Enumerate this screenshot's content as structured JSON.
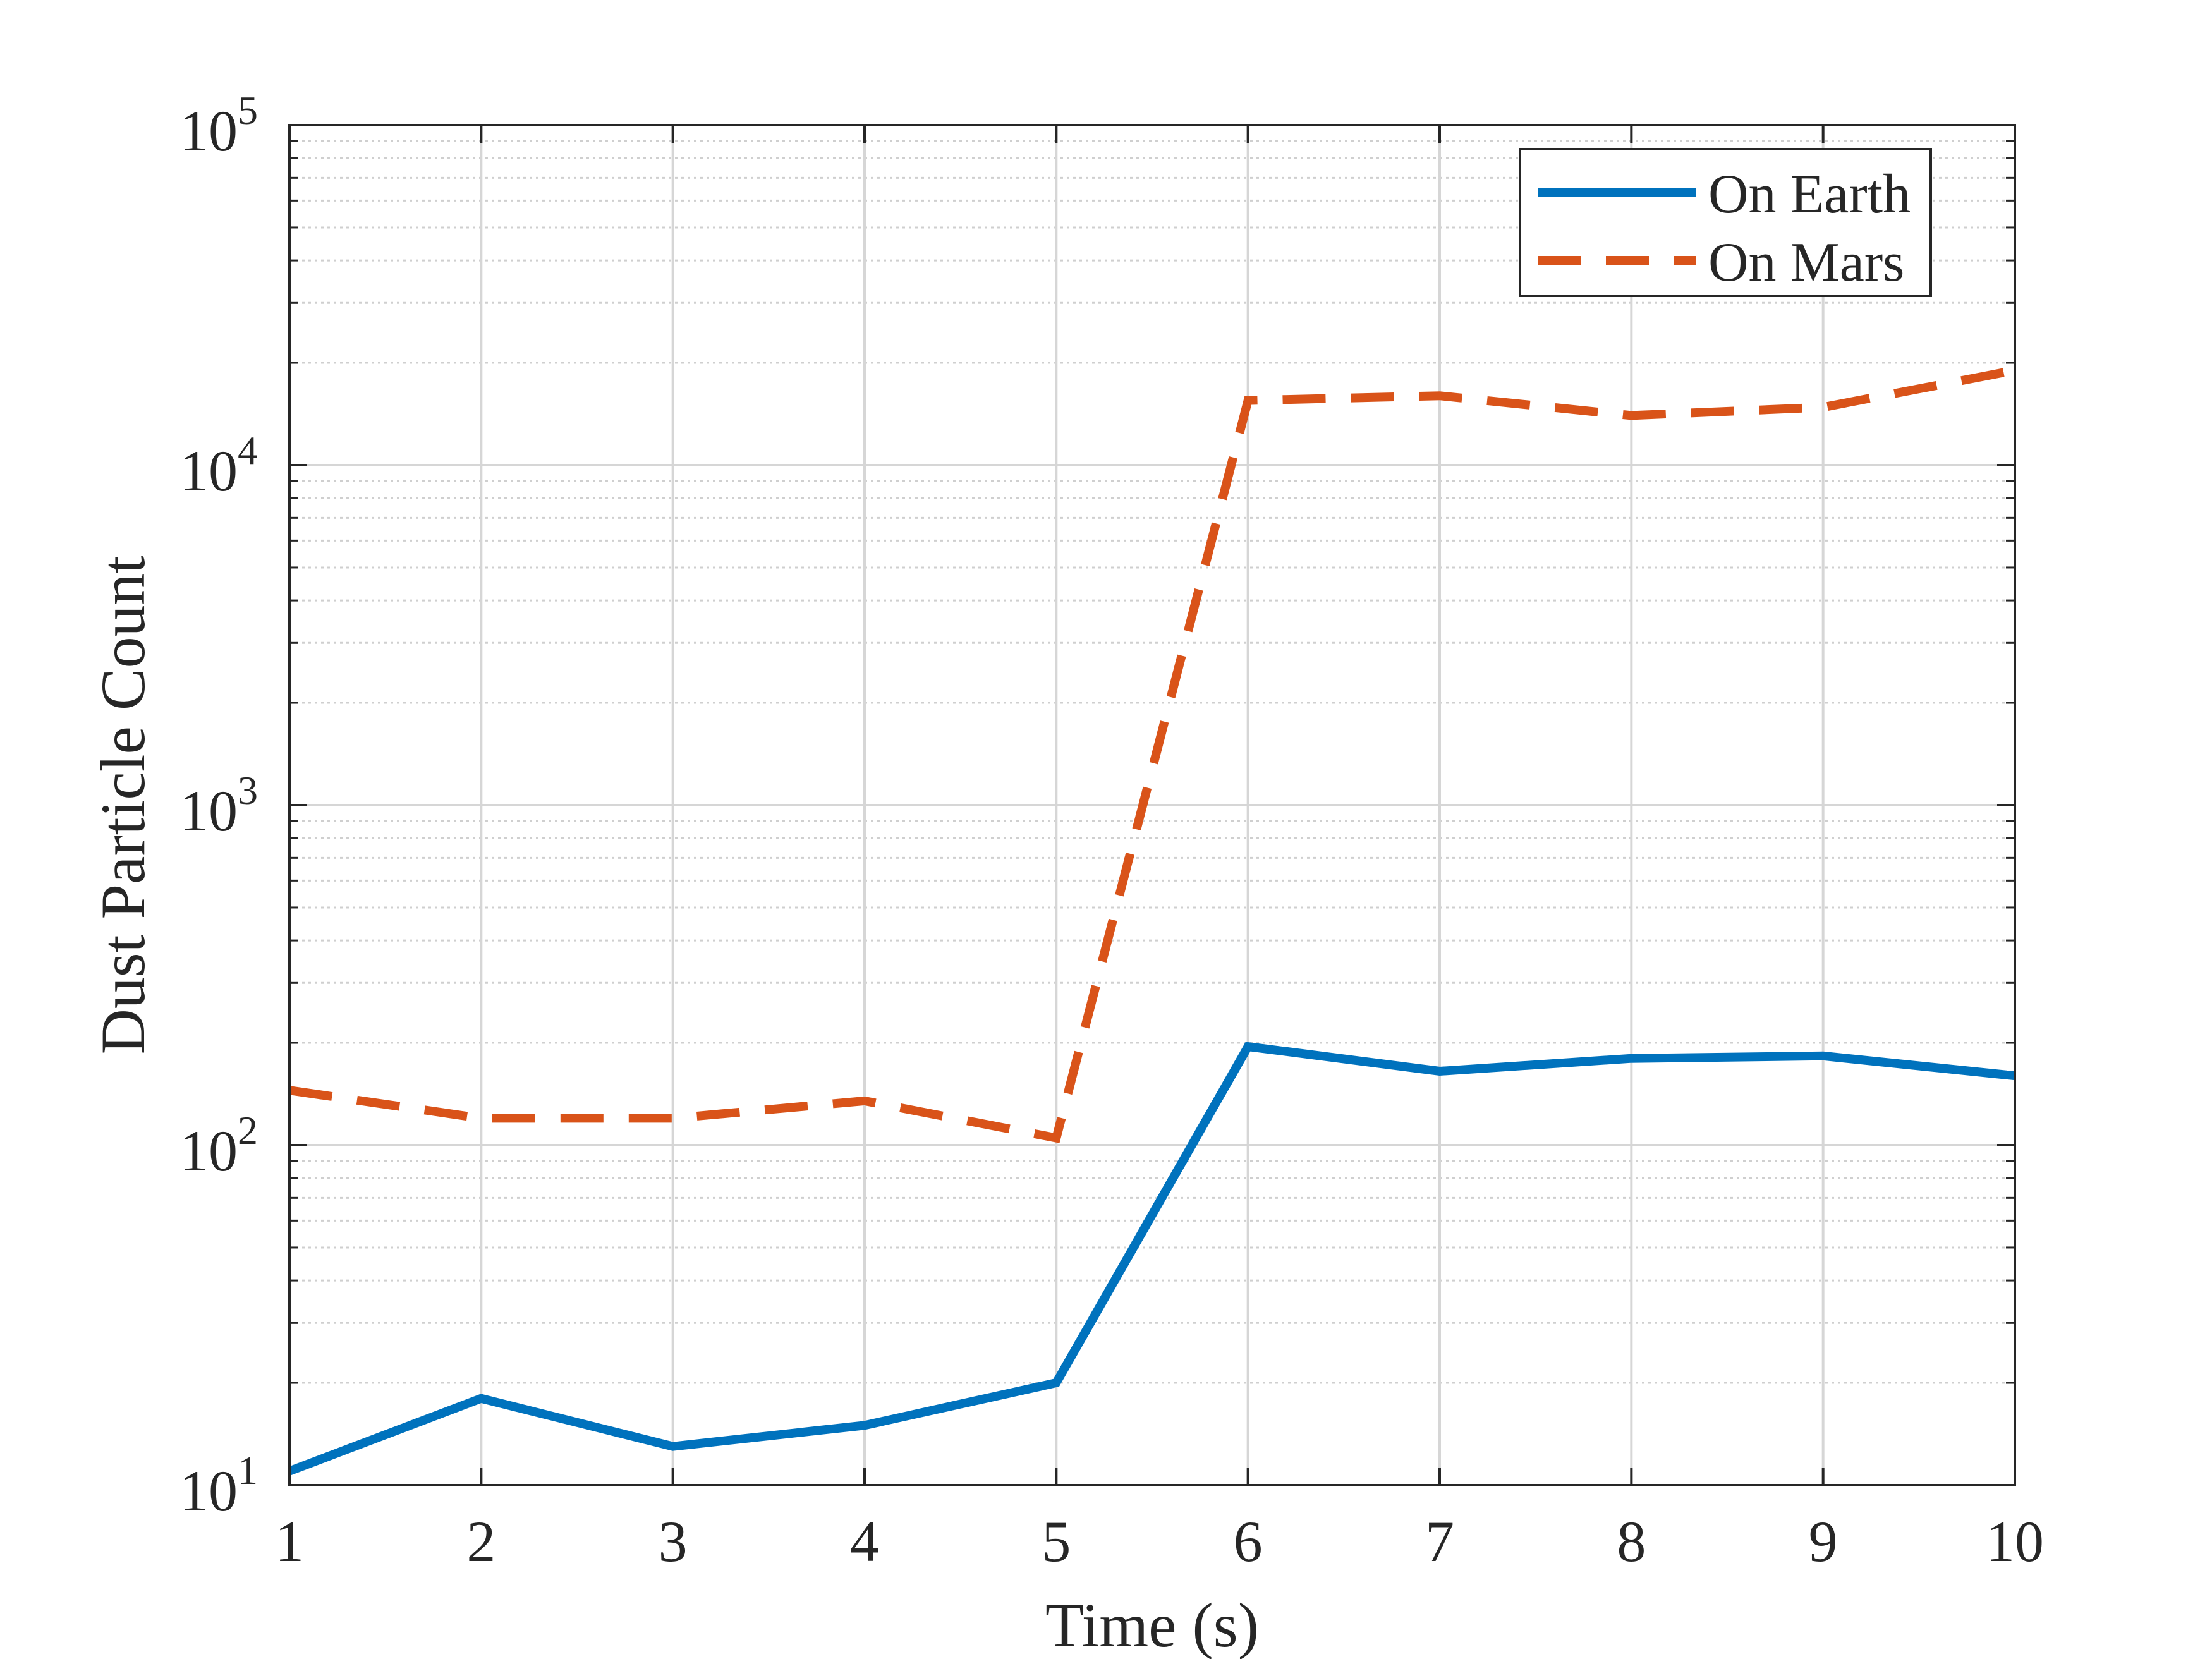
{
  "chart_data": {
    "type": "line",
    "title": "",
    "xlabel": "Time (s)",
    "ylabel": "Dust Particle Count",
    "xlim": [
      1,
      10
    ],
    "ylim": [
      10,
      100000
    ],
    "yscale": "log",
    "grid": true,
    "minor_grid": true,
    "legend_position": "top-right",
    "x": [
      1,
      2,
      3,
      4,
      5,
      6,
      7,
      8,
      9,
      10
    ],
    "x_ticks": [
      "1",
      "2",
      "3",
      "4",
      "5",
      "6",
      "7",
      "8",
      "9",
      "10"
    ],
    "y_ticks": [
      {
        "base": "10",
        "exp": "1"
      },
      {
        "base": "10",
        "exp": "2"
      },
      {
        "base": "10",
        "exp": "3"
      },
      {
        "base": "10",
        "exp": "4"
      },
      {
        "base": "10",
        "exp": "5"
      }
    ],
    "series": [
      {
        "name": "On Earth",
        "style": "solid",
        "color": "#0072BD",
        "values": [
          11,
          18,
          13,
          15,
          20,
          195,
          165,
          180,
          183,
          160
        ]
      },
      {
        "name": "On Mars",
        "style": "dashed",
        "color": "#D95319",
        "values": [
          145,
          120,
          120,
          135,
          105,
          15500,
          16000,
          14000,
          14800,
          19000
        ]
      }
    ]
  }
}
